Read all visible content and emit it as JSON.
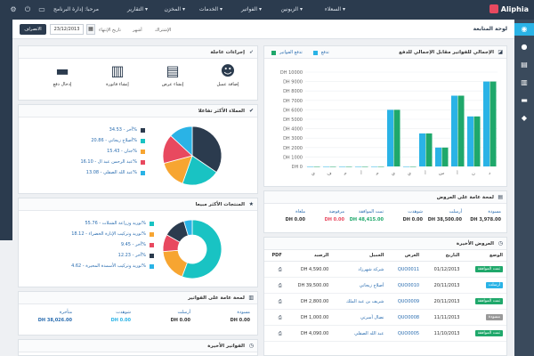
{
  "app": {
    "logo": "Aliphia"
  },
  "nav": {
    "items": [
      "السعلاء ▾",
      "الزبونين ▾",
      "الفواتير ▾",
      "الخدمات ▾",
      "المخزن ▾",
      "التقارير ▾"
    ],
    "user": "مرحبا: إدارة البرنامج"
  },
  "breadcrumb": {
    "title": "لوحة المتابعة",
    "print_label": "الانصراف",
    "date_value": "23/12/2013",
    "date_label": "تاريخ الإنتهاء",
    "range_label": "أشهر",
    "period_label": "الإشتراك"
  },
  "quick_actions": {
    "title": "إجراءات عاجلة",
    "items": [
      {
        "label": "إضافة عميل",
        "icon": "user-icon"
      },
      {
        "label": "إنشاء عرض",
        "icon": "document-icon"
      },
      {
        "label": "إنشاء فاتورة",
        "icon": "invoice-icon"
      },
      {
        "label": "إدخال دفع",
        "icon": "credit-card-icon"
      }
    ]
  },
  "clients_chart": {
    "title": "العملاء الأكثر تفاعلا",
    "items": [
      {
        "label": "آخر - 34.53%",
        "color": "#2b3b4e"
      },
      {
        "label": "أصلاح زيجاتي - 20.86%",
        "color": "#19c3c3"
      },
      {
        "label": "جنان - 15.43%",
        "color": "#f7a531"
      },
      {
        "label": "عبد الرحمن عبد ال - 16.10%",
        "color": "#e8495f"
      },
      {
        "label": "عبد الله الصقلي - 13.08%",
        "color": "#2ab3e6"
      }
    ]
  },
  "products_chart": {
    "title": "المنتجات الأكثر مبيعا",
    "items": [
      {
        "label": "توريد وزراعة الشتلات - 55.76%",
        "color": "#19c3c3"
      },
      {
        "label": "توريد وتركيب الإنارة الخضراء - 18.12%",
        "color": "#f7a531"
      },
      {
        "label": "آخر - 9.45%",
        "color": "#e8495f"
      },
      {
        "label": "آخر - 12.23%",
        "color": "#2b3b4e"
      },
      {
        "label": "توريد وتركيب الأسمدة المحيرة - 4.62%",
        "color": "#2ab3e6"
      }
    ]
  },
  "invoice_summary": {
    "title": "لمحة عامة على الفواتير",
    "cols": [
      {
        "label": "مسودة",
        "value": "DH 0.00",
        "color": "#333"
      },
      {
        "label": "أرسلت",
        "value": "DH 0.00",
        "color": "#333"
      },
      {
        "label": "شوهدت",
        "value": "DH 0.00",
        "color": "#2ab3e6"
      },
      {
        "label": "متأخرة",
        "value": "DH 38,026.00",
        "color": "#2a6db0"
      }
    ]
  },
  "recent_invoices": {
    "title": "الفواتير الأخيرة"
  },
  "bar_chart": {
    "title": "الإجمالي للفواتير مقابل الإجمالي للدفع",
    "legend": [
      {
        "label": "تدفع",
        "color": "#2ab3e6"
      },
      {
        "label": "تدفع الفواتير",
        "color": "#1fa86b"
      }
    ]
  },
  "chart_data": [
    {
      "type": "pie",
      "title": "العملاء الأكثر تفاعلا",
      "labels": [
        "آخر",
        "أصلاح زيجاتي",
        "جنان",
        "عبد الرحمن عبد ال",
        "عبد الله الصقلي"
      ],
      "values": [
        34.53,
        20.86,
        15.43,
        16.1,
        13.08
      ],
      "colors": [
        "#2b3b4e",
        "#19c3c3",
        "#f7a531",
        "#e8495f",
        "#2ab3e6"
      ]
    },
    {
      "type": "pie",
      "title": "المنتجات الأكثر مبيعا",
      "labels": [
        "توريد وزراعة الشتلات",
        "توريد وتركيب الإنارة الخضراء",
        "آخر",
        "آخر",
        "توريد وتركيب الأسمدة المحيرة"
      ],
      "values": [
        55.76,
        18.12,
        9.45,
        12.23,
        4.62
      ],
      "colors": [
        "#19c3c3",
        "#f7a531",
        "#e8495f",
        "#2b3b4e",
        "#2ab3e6"
      ]
    },
    {
      "type": "bar",
      "title": "الإجمالي للفواتير مقابل الإجمالي للدفع",
      "categories": [
        "ي",
        "ف",
        "م",
        "أ",
        "م",
        "ي",
        "ي",
        "أ",
        "س",
        "أ",
        "ن",
        "د"
      ],
      "series": [
        {
          "name": "تدفع",
          "values": [
            0,
            0,
            0,
            0,
            0,
            6000,
            0,
            3500,
            2000,
            7500,
            5300,
            9000
          ]
        },
        {
          "name": "تدفع الفواتير",
          "values": [
            0,
            0,
            0,
            0,
            0,
            6000,
            0,
            3500,
            2000,
            7500,
            5300,
            9000
          ]
        }
      ],
      "yticks": [
        "DH 0",
        "DH 1000",
        "DH 2000",
        "DH 3000",
        "DH 4000",
        "DH 5000",
        "DH 6000",
        "DH 7000",
        "DH 8000",
        "DH 9000",
        "DH 10000"
      ],
      "ylim": [
        0,
        10000
      ]
    }
  ],
  "quotes_summary": {
    "title": "لمحة عامة على العروض",
    "cols": [
      {
        "label": "مسودة",
        "value": "DH 3,978.00",
        "color": "#333"
      },
      {
        "label": "أرسلت",
        "value": "DH 38,500.00",
        "color": "#333"
      },
      {
        "label": "شوهدت",
        "value": "DH 0.00",
        "color": "#333"
      },
      {
        "label": "تمت الموافقة",
        "value": "DH 48,415.00",
        "color": "#1fa86b"
      },
      {
        "label": "مرفوضة",
        "value": "DH 0.00",
        "color": "#e8495f"
      },
      {
        "label": "ملغاة",
        "value": "DH 0.00",
        "color": "#333"
      }
    ]
  },
  "recent_quotes": {
    "title": "العروض الأخيرة",
    "headers": [
      "الوضع",
      "التاريخ",
      "العرض",
      "العميل",
      "الرصيد",
      "PDF"
    ],
    "rows": [
      {
        "status": "تمت الموافقة",
        "status_color": "#1fa86b",
        "date": "01/12/2013",
        "quote": "QUO0011",
        "client": "شركة شهرزاد",
        "amount": "DH 4,590.00"
      },
      {
        "status": "أرسلت",
        "status_color": "#2ab3e6",
        "date": "20/11/2013",
        "quote": "QUO0010",
        "client": "أصلاح زيجاتي",
        "amount": "DH 39,500.00"
      },
      {
        "status": "تمت الموافقة",
        "status_color": "#1fa86b",
        "date": "20/11/2013",
        "quote": "QUO0009",
        "client": "شريف بن عبد الملك",
        "amount": "DH 2,800.00"
      },
      {
        "status": "مسودة",
        "status_color": "#999",
        "date": "11/11/2013",
        "quote": "QUO0008",
        "client": "نضال أسرتي",
        "amount": "DH 1,000.00"
      },
      {
        "status": "تمت الموافقة",
        "status_color": "#1fa86b",
        "date": "11/10/2013",
        "quote": "QUO0005",
        "client": "عبد الله الصقلي",
        "amount": "DH 4,090.00"
      }
    ]
  }
}
